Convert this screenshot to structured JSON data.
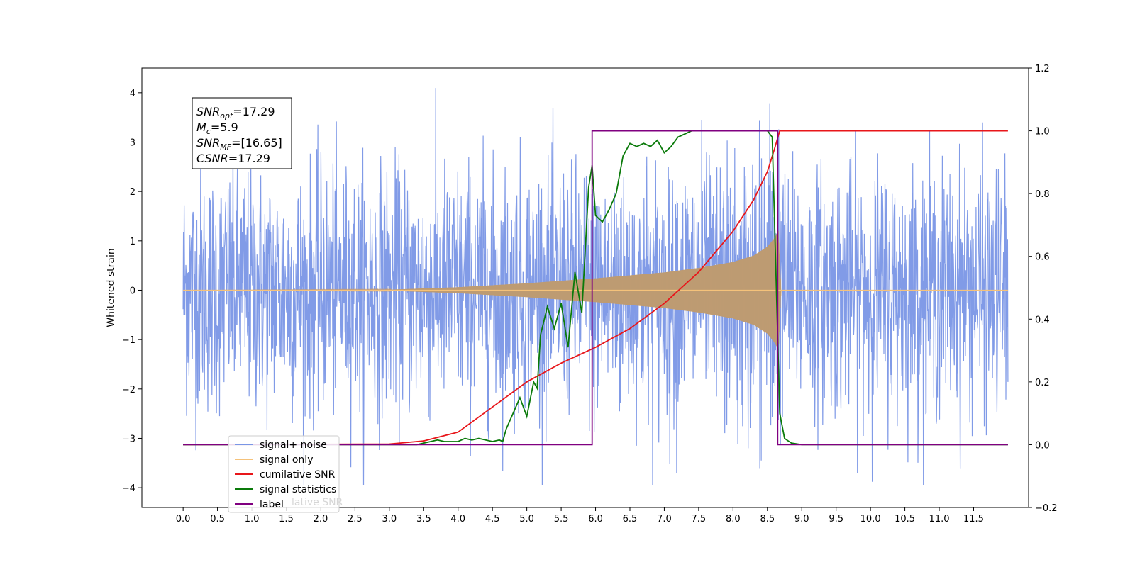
{
  "chart_data": {
    "type": "line",
    "title": "",
    "xlabel": "",
    "ylabel": "Whitened strain",
    "y2label": "",
    "xlim": [
      -0.6,
      12.3
    ],
    "ylim": [
      -4.4,
      4.5
    ],
    "y2lim": [
      -0.2,
      1.2
    ],
    "xticks": [
      "0.0",
      "0.5",
      "1.0",
      "1.5",
      "2.0",
      "2.5",
      "3.0",
      "3.5",
      "4.0",
      "4.5",
      "5.0",
      "5.5",
      "6.0",
      "6.5",
      "7.0",
      "7.5",
      "8.0",
      "8.5",
      "9.0",
      "9.5",
      "10.0",
      "10.5",
      "11.0",
      "11.5"
    ],
    "yticks": [
      "4",
      "3",
      "2",
      "1",
      "0",
      "−1",
      "−2",
      "−3",
      "−4"
    ],
    "y2ticks": [
      "1.2",
      "1.0",
      "0.8",
      "0.6",
      "0.4",
      "0.2",
      "0.0",
      "−0.2"
    ],
    "grid": false,
    "legend_position": "lower-left",
    "annotation": {
      "lines": [
        {
          "sym": "SNR",
          "sub": "opt",
          "val": "=17.29"
        },
        {
          "sym": "M",
          "sub": "c",
          "val": "=5.9"
        },
        {
          "sym": "SNR",
          "sub": "MF",
          "val": "=[16.65]"
        },
        {
          "sym": "CSNR",
          "sub": "",
          "val": "=17.29"
        }
      ]
    },
    "legend_ghost_text": "lative SNR",
    "series": [
      {
        "name": "signal+ noise",
        "axis": "left",
        "color": "#7a96e6",
        "x_range": [
          0.0,
          12.0
        ],
        "noise_amplitude": 1.3,
        "description_values": {
          "max": 4.1,
          "min": -3.9
        }
      },
      {
        "name": "signal only",
        "axis": "left",
        "color": "#f5c27a",
        "x_range": [
          0.0,
          12.0
        ],
        "envelope_x": [
          0.0,
          3.0,
          4.0,
          5.0,
          6.0,
          7.0,
          7.5,
          8.0,
          8.3,
          8.5,
          8.6,
          8.66,
          8.7,
          12.0
        ],
        "envelope_y": [
          0.0,
          0.01,
          0.06,
          0.14,
          0.24,
          0.36,
          0.45,
          0.57,
          0.7,
          0.88,
          1.05,
          1.2,
          0.0,
          0.0
        ]
      },
      {
        "name": "cumilative SNR",
        "axis": "right",
        "color": "#e8161a",
        "x": [
          0.0,
          3.0,
          3.5,
          4.0,
          4.5,
          5.0,
          5.5,
          6.0,
          6.5,
          7.0,
          7.5,
          8.0,
          8.3,
          8.5,
          8.6,
          8.68,
          8.7,
          12.0
        ],
        "y": [
          0.0,
          0.002,
          0.012,
          0.04,
          0.12,
          0.2,
          0.26,
          0.31,
          0.37,
          0.45,
          0.55,
          0.68,
          0.78,
          0.87,
          0.94,
          1.0,
          1.0,
          1.0
        ]
      },
      {
        "name": "signal statistics",
        "axis": "right",
        "color": "#0a7a0a",
        "x": [
          0.0,
          3.4,
          3.6,
          3.7,
          3.8,
          4.0,
          4.1,
          4.2,
          4.3,
          4.4,
          4.5,
          4.6,
          4.65,
          4.7,
          4.8,
          4.9,
          5.0,
          5.1,
          5.15,
          5.2,
          5.3,
          5.4,
          5.5,
          5.6,
          5.7,
          5.8,
          5.9,
          5.95,
          6.0,
          6.1,
          6.2,
          6.3,
          6.4,
          6.5,
          6.6,
          6.7,
          6.8,
          6.9,
          7.0,
          7.1,
          7.2,
          7.3,
          7.4,
          7.5,
          8.0,
          8.5,
          8.57,
          8.63,
          8.68,
          8.75,
          8.85,
          9.0,
          12.0
        ],
        "y": [
          0.0,
          0.0,
          0.01,
          0.015,
          0.01,
          0.01,
          0.02,
          0.015,
          0.02,
          0.015,
          0.01,
          0.015,
          0.01,
          0.05,
          0.1,
          0.15,
          0.09,
          0.2,
          0.18,
          0.35,
          0.44,
          0.37,
          0.45,
          0.31,
          0.55,
          0.42,
          0.82,
          0.89,
          0.73,
          0.71,
          0.75,
          0.8,
          0.92,
          0.96,
          0.95,
          0.96,
          0.95,
          0.97,
          0.93,
          0.95,
          0.98,
          0.99,
          1.0,
          1.0,
          1.0,
          1.0,
          0.98,
          0.5,
          0.1,
          0.02,
          0.005,
          0.0,
          0.0
        ]
      },
      {
        "name": "label",
        "axis": "right",
        "color": "#800080",
        "x": [
          0.0,
          5.95,
          5.95,
          8.65,
          8.65,
          12.0
        ],
        "y": [
          0.0,
          0.0,
          1.0,
          1.0,
          0.0,
          0.0
        ]
      }
    ]
  }
}
